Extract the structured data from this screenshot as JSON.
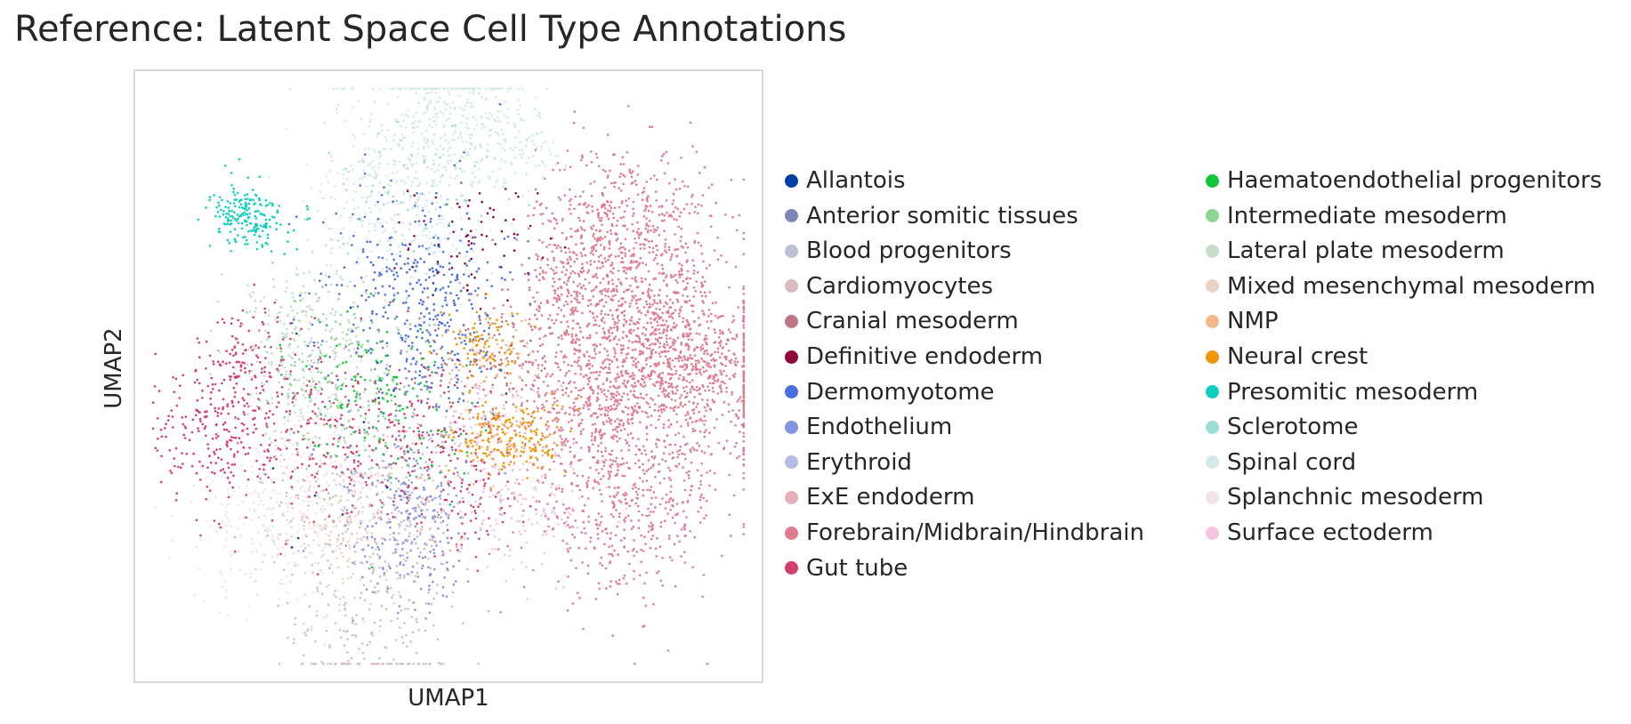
{
  "figure": {
    "title": "Reference: Latent Space Cell Type Annotations"
  },
  "chart_data": {
    "type": "scatter",
    "title": "Reference: Latent Space Cell Type Annotations",
    "xlabel": "UMAP1",
    "ylabel": "UMAP2",
    "grid": false,
    "ticks": false,
    "legend_placement": "right, two columns",
    "frame_color": "#cccccc",
    "series": [
      {
        "name": "Allantois",
        "color": "#023fa5",
        "blobs": [
          [
            0.37,
            0.53,
            0.08,
            1,
            10
          ],
          [
            0.28,
            0.27,
            0.1,
            1,
            6
          ]
        ]
      },
      {
        "name": "Anterior somitic tissues",
        "color": "#7d87b9",
        "blobs": [
          [
            0.4,
            0.44,
            0.08,
            1,
            60
          ],
          [
            0.45,
            0.52,
            0.06,
            1,
            30
          ]
        ]
      },
      {
        "name": "Blood progenitors",
        "color": "#bec1d4",
        "blobs": [
          [
            0.4,
            0.33,
            0.05,
            1,
            45
          ],
          [
            0.35,
            0.55,
            0.06,
            1,
            25
          ]
        ]
      },
      {
        "name": "Cardiomyocytes",
        "color": "#d6bcc0",
        "blobs": [
          [
            0.38,
            0.12,
            0.12,
            0.5,
            260
          ],
          [
            0.3,
            0.28,
            0.06,
            1,
            70
          ]
        ]
      },
      {
        "name": "Cranial mesoderm",
        "color": "#bb7784",
        "blobs": [
          [
            0.55,
            0.54,
            0.05,
            1,
            70
          ],
          [
            0.63,
            0.52,
            0.04,
            1,
            40
          ]
        ]
      },
      {
        "name": "Definitive endoderm",
        "color": "#8e063b",
        "blobs": [
          [
            0.54,
            0.72,
            0.05,
            1,
            70
          ]
        ]
      },
      {
        "name": "Dermomyotome",
        "color": "#4a6fe3",
        "blobs": [
          [
            0.45,
            0.67,
            0.08,
            1,
            230
          ],
          [
            0.47,
            0.57,
            0.07,
            1,
            160
          ]
        ]
      },
      {
        "name": "Endothelium",
        "color": "#8595e1",
        "blobs": [
          [
            0.45,
            0.22,
            0.05,
            1,
            130
          ],
          [
            0.43,
            0.32,
            0.05,
            1,
            90
          ]
        ]
      },
      {
        "name": "Erythroid",
        "color": "#b5bbe3",
        "blobs": [
          [
            0.46,
            0.3,
            0.04,
            1,
            60
          ]
        ]
      },
      {
        "name": "ExE endoderm",
        "color": "#e6afb9",
        "blobs": [
          [
            0.58,
            0.4,
            0.06,
            1,
            80
          ],
          [
            0.46,
            0.26,
            0.05,
            1,
            60
          ]
        ]
      },
      {
        "name": "Forebrain/Midbrain/Hindbrain",
        "color": "#e07b91",
        "blobs": [
          [
            0.78,
            0.74,
            0.07,
            1,
            550
          ],
          [
            0.82,
            0.55,
            0.08,
            1,
            650
          ],
          [
            0.78,
            0.3,
            0.08,
            1,
            550
          ],
          [
            0.9,
            0.5,
            0.07,
            1,
            550
          ],
          [
            0.7,
            0.62,
            0.05,
            1,
            250
          ],
          [
            0.72,
            0.45,
            0.05,
            1,
            250
          ]
        ]
      },
      {
        "name": "Gut tube",
        "color": "#d33f6a",
        "blobs": [
          [
            0.18,
            0.52,
            0.05,
            1,
            150
          ],
          [
            0.12,
            0.4,
            0.05,
            1,
            170
          ],
          [
            0.3,
            0.4,
            0.08,
            1,
            220
          ],
          [
            0.48,
            0.42,
            0.06,
            1,
            110
          ],
          [
            0.52,
            0.3,
            0.05,
            1,
            90
          ]
        ]
      },
      {
        "name": "Haematoendothelial progenitors",
        "color": "#11c638",
        "blobs": [
          [
            0.38,
            0.5,
            0.06,
            1,
            80
          ],
          [
            0.42,
            0.4,
            0.06,
            1,
            60
          ]
        ]
      },
      {
        "name": "Intermediate mesoderm",
        "color": "#8dd593",
        "blobs": [
          [
            0.3,
            0.54,
            0.06,
            1,
            90
          ],
          [
            0.36,
            0.46,
            0.05,
            1,
            60
          ]
        ]
      },
      {
        "name": "Lateral plate mesoderm",
        "color": "#c6dec7",
        "blobs": [
          [
            0.26,
            0.58,
            0.06,
            1,
            170
          ],
          [
            0.26,
            0.48,
            0.05,
            1,
            100
          ]
        ]
      },
      {
        "name": "Mixed mesenchymal mesoderm",
        "color": "#ead3c6",
        "blobs": [
          [
            0.35,
            0.28,
            0.06,
            1,
            110
          ],
          [
            0.32,
            0.2,
            0.06,
            1,
            80
          ]
        ]
      },
      {
        "name": "NMP",
        "color": "#f0b98d",
        "blobs": [
          [
            0.57,
            0.52,
            0.04,
            1,
            60
          ]
        ]
      },
      {
        "name": "Neural crest",
        "color": "#ef9708",
        "blobs": [
          [
            0.6,
            0.4,
            0.03,
            1.5,
            220
          ],
          [
            0.56,
            0.55,
            0.03,
            1,
            90
          ]
        ]
      },
      {
        "name": "Presomitic mesoderm",
        "color": "#0fcfc0",
        "blobs": [
          [
            0.18,
            0.76,
            0.025,
            1.2,
            200
          ]
        ]
      },
      {
        "name": "Sclerotome",
        "color": "#9cded6",
        "blobs": [
          [
            0.44,
            0.8,
            0.06,
            1,
            60
          ]
        ]
      },
      {
        "name": "Spinal cord",
        "color": "#d5eae7",
        "blobs": [
          [
            0.52,
            0.92,
            0.07,
            0.7,
            300
          ],
          [
            0.42,
            0.82,
            0.09,
            0.7,
            420
          ],
          [
            0.62,
            0.88,
            0.04,
            0.8,
            80
          ]
        ]
      },
      {
        "name": "Splanchnic mesoderm",
        "color": "#f3e1eb",
        "blobs": [
          [
            0.22,
            0.26,
            0.07,
            1,
            220
          ],
          [
            0.3,
            0.36,
            0.06,
            1,
            120
          ]
        ]
      },
      {
        "name": "Surface ectoderm",
        "color": "#f6c4e1",
        "blobs": [
          [
            0.63,
            0.28,
            0.05,
            1,
            120
          ],
          [
            0.56,
            0.42,
            0.04,
            1,
            60
          ]
        ]
      }
    ]
  }
}
